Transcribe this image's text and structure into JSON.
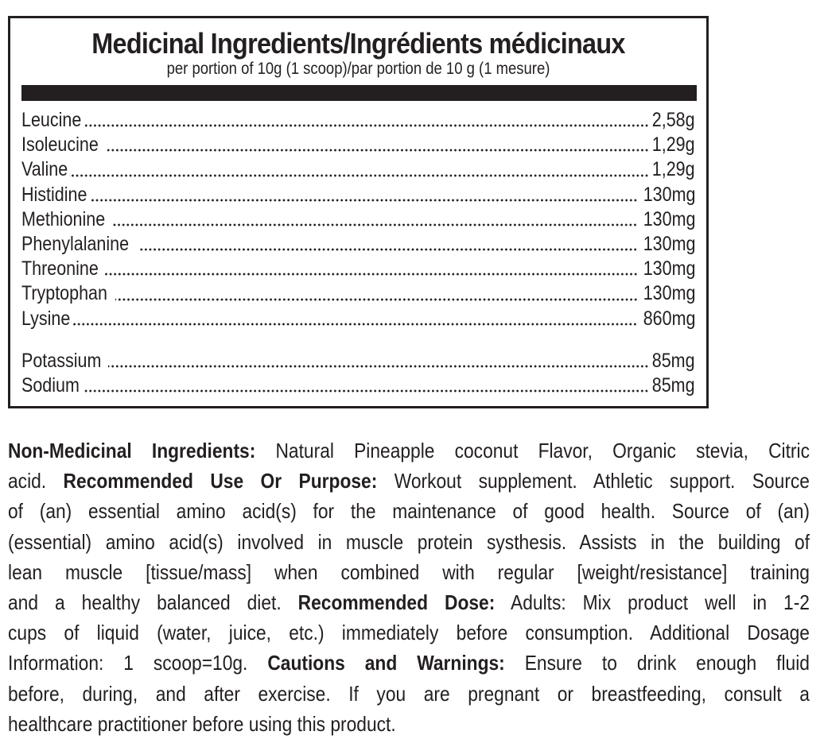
{
  "medicinal_box": {
    "title": "Medicinal Ingredients/Ingrédients médicinaux",
    "subtitle": "per portion of 10g (1 scoop)/par portion de 10 g (1 mesure)",
    "ingredients": [
      {
        "name": "Leucine",
        "value": "2,58g"
      },
      {
        "name": "Isoleucine",
        "value": "1,29g"
      },
      {
        "name": "Valine",
        "value": "1,29g"
      },
      {
        "name": "Histidine",
        "value": "130mg"
      },
      {
        "name": "Methionine",
        "value": "130mg"
      },
      {
        "name": "Phenylalanine",
        "value": "130mg"
      },
      {
        "name": "Threonine",
        "value": "130mg"
      },
      {
        "name": "Tryptophan",
        "value": "130mg"
      },
      {
        "name": "Lysine",
        "value": "860mg"
      }
    ],
    "minerals": [
      {
        "name": "Potassium",
        "value": "85mg"
      },
      {
        "name": "Sodium",
        "value": "85mg"
      }
    ]
  },
  "body": {
    "lines": [
      [
        {
          "bold": true,
          "text": "Non-Medicinal Ingredients:"
        },
        {
          "bold": false,
          "text": " Natural Pineapple coconut Flavor, Organic stevia, Citric"
        }
      ],
      [
        {
          "bold": false,
          "text": "acid. "
        },
        {
          "bold": true,
          "text": "Recommended Use Or Purpose:"
        },
        {
          "bold": false,
          "text": " Workout supplement. Athletic support. Source"
        }
      ],
      [
        {
          "bold": false,
          "text": "of (an) essential amino acid(s) for the maintenance of good health. Source of (an)"
        }
      ],
      [
        {
          "bold": false,
          "text": "(essential) amino acid(s) involved in muscle protein systhesis. Assists in the building of"
        }
      ],
      [
        {
          "bold": false,
          "text": "lean muscle [tissue/mass] when combined with regular [weight/resistance] training"
        }
      ],
      [
        {
          "bold": false,
          "text": "and a healthy balanced diet. "
        },
        {
          "bold": true,
          "text": "Recommended Dose:"
        },
        {
          "bold": false,
          "text": " Adults: Mix product well in 1-2"
        }
      ],
      [
        {
          "bold": false,
          "text": "cups of liquid (water, juice, etc.) immediately before consumption. Additional Dosage"
        }
      ],
      [
        {
          "bold": false,
          "text": "Information: 1 scoop=10g. "
        },
        {
          "bold": true,
          "text": "Cautions and Warnings:"
        },
        {
          "bold": false,
          "text": " Ensure to drink enough fluid"
        }
      ],
      [
        {
          "bold": false,
          "text": "before, during, and after exercise. If you are pregnant or breastfeeding, consult a"
        }
      ],
      [
        {
          "bold": false,
          "text": "healthcare practitioner before using this product."
        }
      ]
    ]
  }
}
